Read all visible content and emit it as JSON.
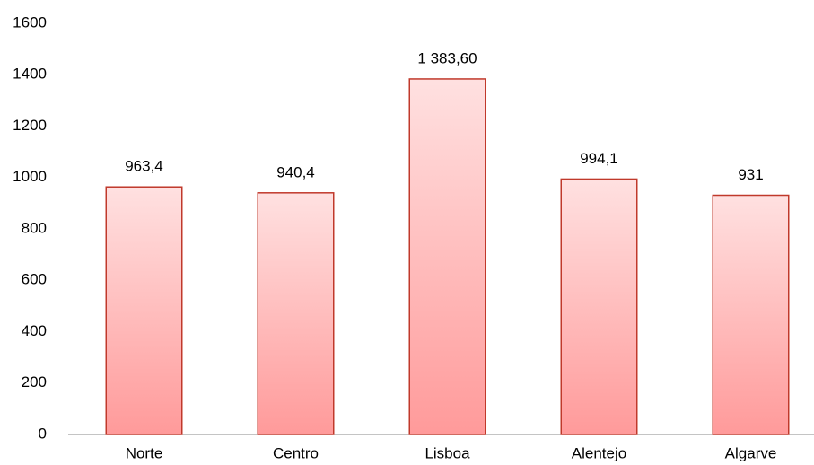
{
  "chart_data": {
    "type": "bar",
    "categories": [
      "Norte",
      "Centro",
      "Lisboa",
      "Alentejo",
      "Algarve"
    ],
    "values": [
      963.4,
      940.4,
      1383.6,
      994.1,
      931
    ],
    "value_labels": [
      "963,4",
      "940,4",
      "1 383,60",
      "994,1",
      "931"
    ],
    "color": "#ff9a9a",
    "edge_color": "#c0392b",
    "ylim": [
      0,
      1600
    ],
    "yticks": [
      0,
      200,
      400,
      600,
      800,
      1000,
      1200,
      1400,
      1600
    ],
    "grid": false
  }
}
